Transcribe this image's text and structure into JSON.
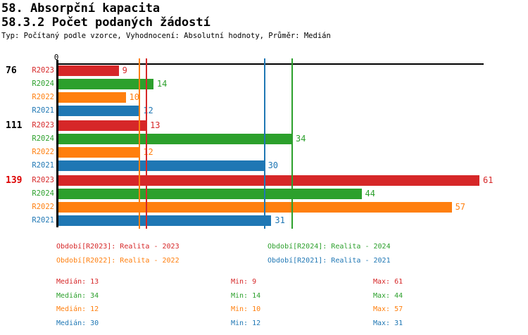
{
  "header": {
    "title1": "58. Absorpční kapacita",
    "title2": "58.3.2 Počet podaných žádostí",
    "meta": "Typ: Počítaný podle vzorce, Vyhodnocení: Absolutní hodnoty, Průměr: Medián"
  },
  "colors": {
    "R2023": "#d62728",
    "R2024": "#2ca02c",
    "R2022": "#ff7f0e",
    "R2021": "#1f77b4",
    "axis": "#000000",
    "highlight_group_label": "#dd0000",
    "default_group_label": "#000000"
  },
  "chart_data": {
    "type": "bar",
    "orientation": "horizontal",
    "value_axis": {
      "zero_label": "0",
      "max": 61
    },
    "series_order": [
      "R2023",
      "R2024",
      "R2022",
      "R2021"
    ],
    "groups": [
      {
        "label": "76",
        "highlight": false,
        "values": {
          "R2023": 9,
          "R2024": 14,
          "R2022": 10,
          "R2021": 12
        }
      },
      {
        "label": "111",
        "highlight": false,
        "values": {
          "R2023": 13,
          "R2024": 34,
          "R2022": 12,
          "R2021": 30
        }
      },
      {
        "label": "139",
        "highlight": true,
        "values": {
          "R2023": 61,
          "R2024": 44,
          "R2022": 57,
          "R2021": 31
        }
      }
    ],
    "median_lines": {
      "R2023": 13,
      "R2024": 34,
      "R2022": 12,
      "R2021": 30
    },
    "legend": [
      {
        "series": "R2023",
        "label": "Období[R2023]: Realita - 2023"
      },
      {
        "series": "R2024",
        "label": "Období[R2024]: Realita - 2024"
      },
      {
        "series": "R2022",
        "label": "Období[R2022]: Realita - 2022"
      },
      {
        "series": "R2021",
        "label": "Období[R2021]: Realita - 2021"
      }
    ],
    "stats": {
      "labels": {
        "median": "Medián",
        "min": "Min",
        "max": "Max"
      },
      "rows": [
        {
          "series": "R2023",
          "median": 13,
          "min": 9,
          "max": 61
        },
        {
          "series": "R2024",
          "median": 34,
          "min": 14,
          "max": 44
        },
        {
          "series": "R2022",
          "median": 12,
          "min": 10,
          "max": 57
        },
        {
          "series": "R2021",
          "median": 30,
          "min": 12,
          "max": 31
        }
      ]
    }
  }
}
